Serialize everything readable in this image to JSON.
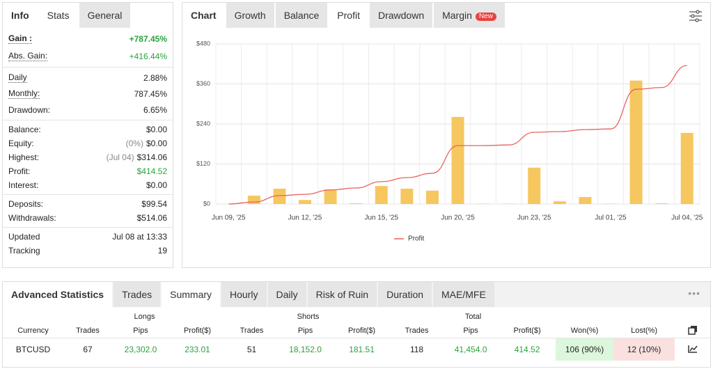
{
  "info_panel": {
    "tabs": [
      "Info",
      "Stats",
      "General"
    ],
    "groups": [
      [
        {
          "label": "Gain :",
          "value": "+787.45%"
        },
        {
          "label": "Abs. Gain:",
          "value": "+416.44%"
        }
      ],
      [
        {
          "label": "Daily",
          "value": "2.88%"
        },
        {
          "label": "Monthly:",
          "value": "787.45%"
        },
        {
          "label": "Drawdown:",
          "value": "6.65%"
        }
      ],
      [
        {
          "label": "Balance:",
          "value": "$0.00"
        },
        {
          "label": "Equity:",
          "note": "(0%)",
          "value": "$0.00"
        },
        {
          "label": "Highest:",
          "note": "(Jul 04)",
          "value": "$314.06"
        },
        {
          "label": "Profit:",
          "value": "$414.52"
        },
        {
          "label": "Interest:",
          "value": "$0.00"
        }
      ],
      [
        {
          "label": "Deposits:",
          "value": "$99.54"
        },
        {
          "label": "Withdrawals:",
          "value": "$514.06"
        }
      ],
      [
        {
          "label": "Updated",
          "value": "Jul 08 at 13:33"
        },
        {
          "label": "Tracking",
          "value": "19"
        }
      ]
    ]
  },
  "chart_panel": {
    "tabs": [
      "Chart",
      "Growth",
      "Balance",
      "Profit",
      "Drawdown",
      "Margin"
    ],
    "badge": "New"
  },
  "chart_data": {
    "type": "combo",
    "categories": [
      "Jun 09, '25",
      null,
      null,
      "Jun 12, '25",
      null,
      null,
      "Jun 15, '25",
      null,
      null,
      "Jun 20, '25",
      null,
      null,
      "Jun 23, '25",
      null,
      null,
      "Jul 01, '25",
      null,
      null,
      "Jul 04, '25"
    ],
    "series": [
      {
        "name": "Profit",
        "type": "line",
        "color": "#e8625e",
        "values": [
          0,
          6,
          25,
          29,
          42,
          48,
          67,
          79,
          92,
          175,
          175,
          177,
          215,
          217,
          223,
          225,
          344,
          349,
          415
        ]
      },
      {
        "type": "bar",
        "color": "#f6c75f",
        "values": [
          0,
          25,
          46,
          12,
          44,
          2,
          54,
          46,
          40,
          261,
          1,
          1,
          109,
          8,
          21,
          1,
          370,
          2,
          213
        ]
      }
    ],
    "ylim": [
      0,
      480
    ],
    "yticks": [
      {
        "value": 0,
        "label": "$0"
      },
      {
        "value": 120,
        "label": "$120"
      },
      {
        "value": 240,
        "label": "$240"
      },
      {
        "value": 360,
        "label": "$360"
      },
      {
        "value": 480,
        "label": "$480"
      }
    ],
    "grid": true,
    "legend": "bottom"
  },
  "advanced_statistics": {
    "title": "Advanced Statistics",
    "tabs": [
      "Trades",
      "Summary",
      "Hourly",
      "Daily",
      "Risk of Ruin",
      "Duration",
      "MAE/MFE"
    ],
    "table": {
      "groups": [
        "Longs",
        "Shorts",
        "Total"
      ],
      "columns": [
        "Currency",
        "Trades",
        "Pips",
        "Profit($)",
        "Trades",
        "Pips",
        "Profit($)",
        "Trades",
        "Pips",
        "Profit($)",
        "Won(%)",
        "Lost(%)"
      ],
      "rows": [
        [
          "BTCUSD",
          "67",
          "23,302.0",
          "233.01",
          "51",
          "18,152.0",
          "181.51",
          "118",
          "41,454.0",
          "414.52",
          "106 (90%)",
          "12 (10%)"
        ]
      ]
    }
  }
}
